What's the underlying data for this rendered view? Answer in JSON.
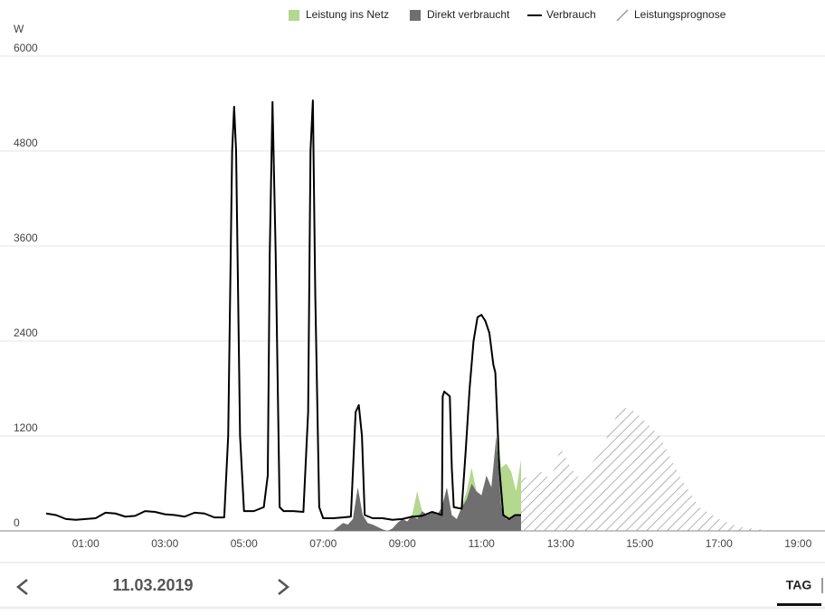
{
  "chart_data": {
    "type": "area-line",
    "y_unit": "W",
    "xlim": [
      0,
      19.68
    ],
    "ylim": [
      0,
      6000
    ],
    "yticks": [
      0,
      1200,
      2400,
      3600,
      4800,
      6000
    ],
    "xticks": [
      {
        "value": 1,
        "label": "01:00"
      },
      {
        "value": 3,
        "label": "03:00"
      },
      {
        "value": 5,
        "label": "05:00"
      },
      {
        "value": 7,
        "label": "07:00"
      },
      {
        "value": 9,
        "label": "09:00"
      },
      {
        "value": 11,
        "label": "11:00"
      },
      {
        "value": 13,
        "label": "13:00"
      },
      {
        "value": 15,
        "label": "15:00"
      },
      {
        "value": 17,
        "label": "17:00"
      },
      {
        "value": 19,
        "label": "19:00"
      }
    ],
    "grid": true,
    "series": [
      {
        "name": "Leistung ins Netz",
        "color": "#b3d88e",
        "kind": "area",
        "stacked": true,
        "x": [
          7.25,
          7.375,
          7.5,
          7.625,
          7.75,
          7.875,
          8.0,
          8.125,
          8.25,
          8.375,
          8.5,
          8.625,
          8.75,
          8.875,
          9.0,
          9.125,
          9.25,
          9.375,
          9.5,
          9.625,
          9.75,
          9.875,
          10.0,
          10.125,
          10.25,
          10.375,
          10.5,
          10.625,
          10.75,
          10.875,
          11.0,
          11.125,
          11.25,
          11.375,
          11.5,
          11.625,
          11.75,
          11.875,
          12.0
        ],
        "values": [
          0,
          0,
          0,
          0,
          0,
          0,
          0,
          0,
          0,
          0,
          0,
          0,
          0,
          0,
          0,
          0,
          0,
          350,
          0,
          0,
          0,
          0,
          0,
          0,
          0,
          0,
          0,
          100,
          200,
          0,
          0,
          0,
          0,
          0,
          500,
          700,
          600,
          300,
          700
        ]
      },
      {
        "name": "Direkt verbraucht",
        "color": "#6f6f6f",
        "kind": "area",
        "stacked": true,
        "x": [
          7.25,
          7.375,
          7.5,
          7.625,
          7.75,
          7.875,
          8.0,
          8.125,
          8.25,
          8.375,
          8.5,
          8.625,
          8.75,
          8.875,
          9.0,
          9.125,
          9.25,
          9.375,
          9.5,
          9.625,
          9.75,
          9.875,
          10.0,
          10.125,
          10.25,
          10.375,
          10.5,
          10.625,
          10.75,
          10.875,
          11.0,
          11.125,
          11.25,
          11.375,
          11.5,
          11.625,
          11.75,
          11.875,
          12.0
        ],
        "values": [
          0,
          50,
          100,
          80,
          150,
          550,
          200,
          100,
          80,
          50,
          20,
          0,
          30,
          100,
          150,
          120,
          200,
          150,
          250,
          200,
          250,
          200,
          300,
          550,
          200,
          150,
          300,
          400,
          600,
          500,
          450,
          700,
          550,
          1200,
          300,
          150,
          150,
          200,
          200
        ]
      },
      {
        "name": "Verbrauch",
        "color": "#000000",
        "kind": "line",
        "x": [
          0,
          0.25,
          0.5,
          0.75,
          1,
          1.25,
          1.5,
          1.75,
          2,
          2.25,
          2.5,
          2.75,
          3,
          3.25,
          3.5,
          3.75,
          4,
          4.25,
          4.5,
          4.6,
          4.7,
          4.75,
          4.8,
          4.9,
          5,
          5.25,
          5.5,
          5.6,
          5.65,
          5.72,
          5.8,
          5.9,
          6,
          6.25,
          6.5,
          6.62,
          6.68,
          6.74,
          6.8,
          6.9,
          7,
          7.25,
          7.5,
          7.7,
          7.82,
          7.9,
          7.98,
          8.05,
          8.25,
          8.5,
          8.75,
          9,
          9.25,
          9.5,
          9.75,
          10,
          10.02,
          10.06,
          10.2,
          10.25,
          10.3,
          10.5,
          10.6,
          10.7,
          10.8,
          10.9,
          11,
          11.1,
          11.2,
          11.3,
          11.35,
          11.45,
          11.55,
          11.7,
          11.85,
          12.0
        ],
        "values": [
          220,
          200,
          150,
          140,
          150,
          160,
          230,
          220,
          180,
          190,
          250,
          240,
          210,
          200,
          180,
          230,
          220,
          170,
          170,
          1200,
          4800,
          5360,
          4800,
          1200,
          250,
          250,
          300,
          700,
          3500,
          5420,
          3500,
          300,
          250,
          250,
          240,
          1500,
          4800,
          5440,
          3000,
          300,
          160,
          160,
          170,
          180,
          1500,
          1590,
          1200,
          200,
          160,
          160,
          140,
          150,
          180,
          190,
          240,
          200,
          1700,
          1760,
          1700,
          800,
          300,
          280,
          1000,
          1800,
          2400,
          2700,
          2730,
          2650,
          2500,
          2100,
          2000,
          800,
          200,
          150,
          200,
          200
        ]
      },
      {
        "name": "Leistungsprognose",
        "color": "#9a9a9a",
        "kind": "hatch",
        "x": [
          12,
          12.5,
          12.75,
          13,
          13.25,
          13.5,
          14,
          14.5,
          14.75,
          15,
          15.5,
          16,
          16.5,
          17,
          17.5,
          18,
          18.5
        ],
        "values": [
          650,
          750,
          650,
          1050,
          800,
          650,
          1000,
          1550,
          1550,
          1450,
          1200,
          700,
          300,
          150,
          50,
          20,
          0
        ]
      }
    ]
  },
  "ui": {
    "date": "11.03.2019",
    "tab": "TAG"
  }
}
